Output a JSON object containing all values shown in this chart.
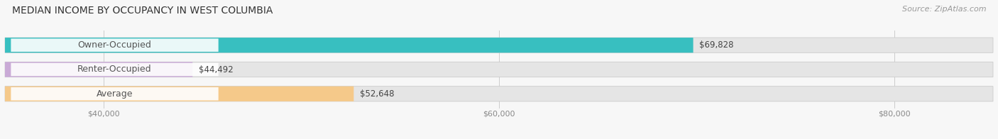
{
  "title": "MEDIAN INCOME BY OCCUPANCY IN WEST COLUMBIA",
  "source": "Source: ZipAtlas.com",
  "categories": [
    "Owner-Occupied",
    "Renter-Occupied",
    "Average"
  ],
  "values": [
    69828,
    44492,
    52648
  ],
  "bar_colors": [
    "#38bfc0",
    "#c9aad6",
    "#f5c98a"
  ],
  "bar_bg_color": "#e5e5e5",
  "label_values": [
    "$69,828",
    "$44,492",
    "$52,648"
  ],
  "xmin": 0,
  "xlim_min": 35000,
  "xlim_max": 85000,
  "xticks": [
    40000,
    60000,
    80000
  ],
  "xtick_labels": [
    "$40,000",
    "$60,000",
    "$80,000"
  ],
  "title_fontsize": 10,
  "source_fontsize": 8,
  "label_fontsize": 9,
  "value_fontsize": 8.5,
  "bar_height": 0.62,
  "background_color": "#f7f7f7"
}
